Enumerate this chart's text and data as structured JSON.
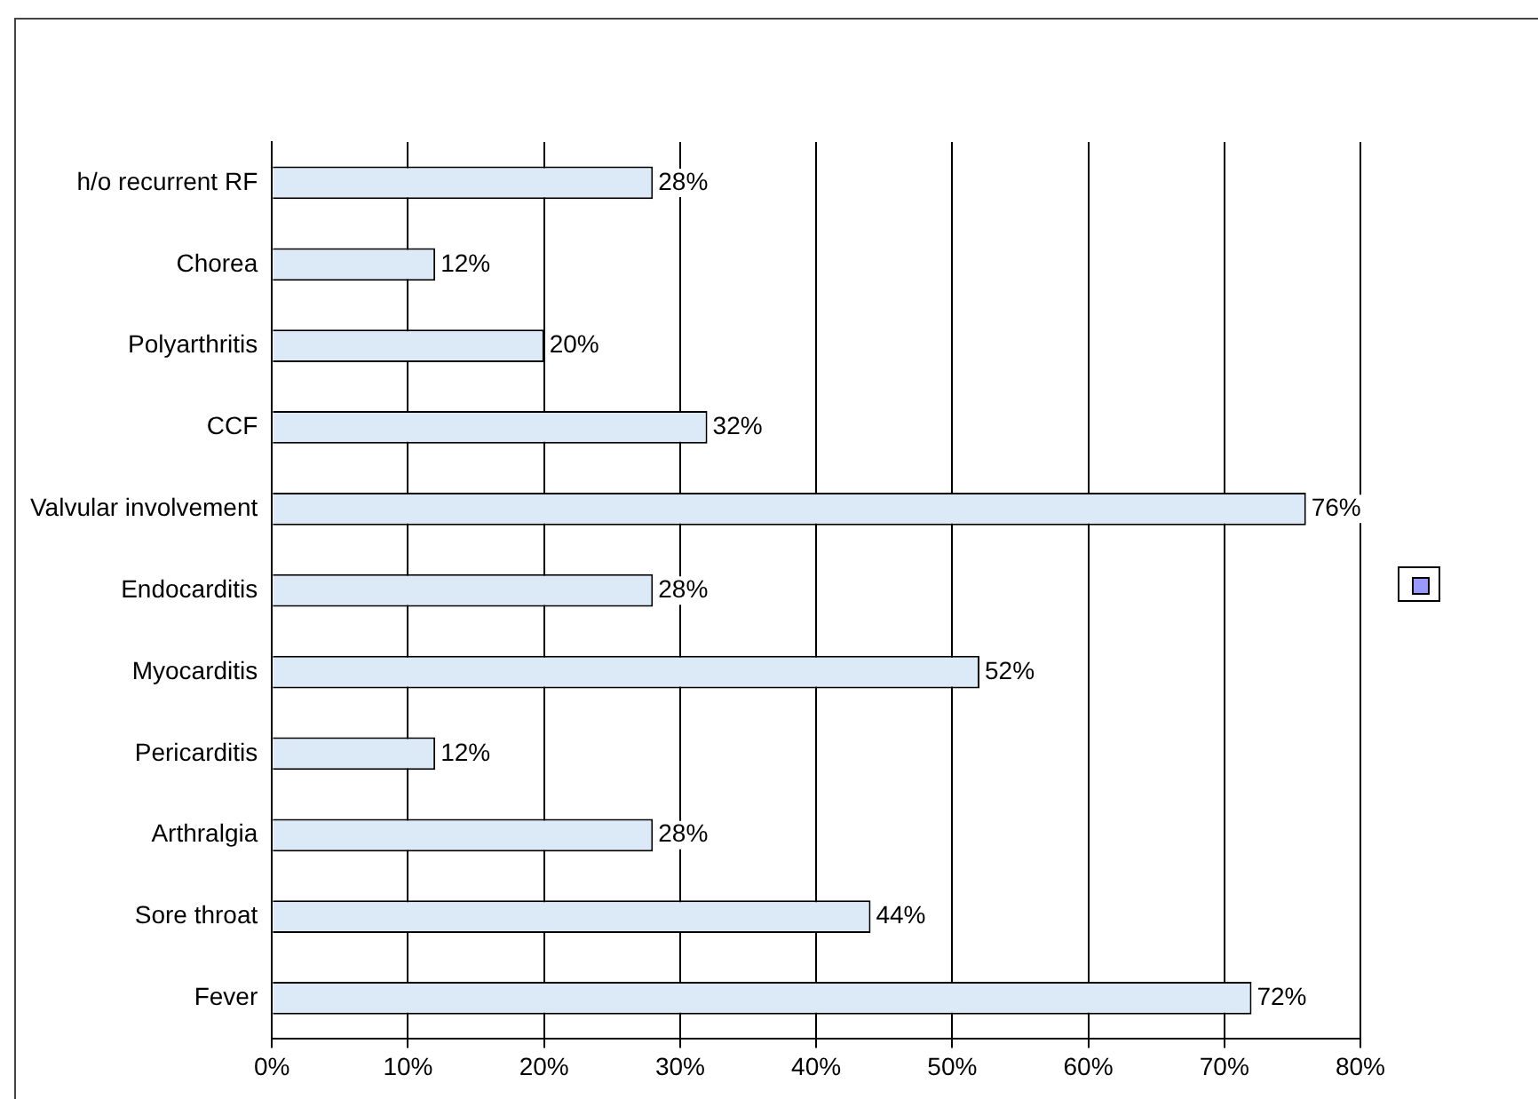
{
  "chart_data": {
    "type": "bar",
    "orientation": "horizontal",
    "categories": [
      "h/o recurrent RF",
      "Chorea",
      "Polyarthritis",
      "CCF",
      "Valvular involvement",
      "Endocarditis",
      "Myocarditis",
      "Pericarditis",
      "Arthralgia",
      "Sore throat",
      "Fever"
    ],
    "values": [
      28,
      12,
      20,
      32,
      76,
      28,
      52,
      12,
      28,
      44,
      72
    ],
    "value_labels": [
      "28%",
      "12%",
      "20%",
      "32%",
      "76%",
      "28%",
      "52%",
      "12%",
      "28%",
      "44%",
      "72%"
    ],
    "color": "#dce9f7",
    "xlim": [
      0,
      80
    ],
    "xticks": [
      {
        "value": 0,
        "label": "0%"
      },
      {
        "value": 10,
        "label": "10%"
      },
      {
        "value": 20,
        "label": "20%"
      },
      {
        "value": 30,
        "label": "30%"
      },
      {
        "value": 40,
        "label": "40%"
      },
      {
        "value": 50,
        "label": "50%"
      },
      {
        "value": 60,
        "label": "60%"
      },
      {
        "value": 70,
        "label": "70%"
      },
      {
        "value": 80,
        "label": "80%"
      }
    ],
    "grid": "x"
  }
}
